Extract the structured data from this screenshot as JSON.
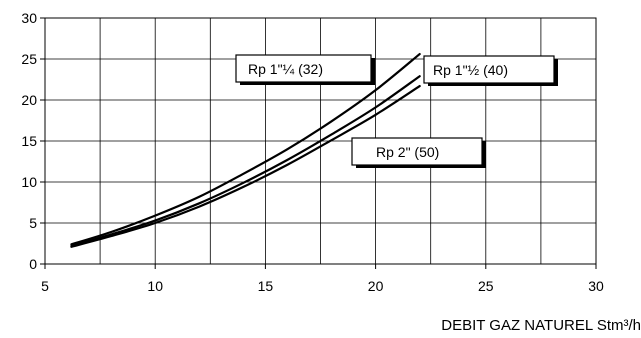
{
  "chart_data": {
    "type": "line",
    "xlim": [
      5,
      30
    ],
    "ylim": [
      0,
      30
    ],
    "x_ticks": [
      5,
      10,
      15,
      20,
      25,
      30
    ],
    "y_ticks": [
      0,
      5,
      10,
      15,
      20,
      25,
      30
    ],
    "grid": true,
    "minor_grid_x_step": 2.5,
    "xlabel": "DEBIT GAZ NATUREL Stm³/h",
    "ylabel": "",
    "title": "",
    "series": [
      {
        "name": "Rp 1\"¼ (32)",
        "x": [
          6.2,
          8,
          10,
          12,
          14,
          16,
          18,
          20,
          22
        ],
        "y": [
          2.4,
          3.9,
          5.9,
          8.2,
          11.0,
          14.0,
          17.4,
          21.2,
          25.6
        ]
      },
      {
        "name": "Rp 1\"½ (40)",
        "x": [
          6.2,
          8,
          10,
          12,
          14,
          16,
          18,
          20,
          22
        ],
        "y": [
          2.2,
          3.6,
          5.3,
          7.4,
          9.9,
          12.7,
          15.8,
          19.1,
          22.9
        ]
      },
      {
        "name": "Rp 2\" (50)",
        "x": [
          6.2,
          8,
          10,
          12,
          14,
          16,
          18,
          20,
          22
        ],
        "y": [
          2.1,
          3.4,
          5.0,
          7.0,
          9.4,
          12.1,
          15.1,
          18.2,
          21.7
        ]
      }
    ]
  }
}
